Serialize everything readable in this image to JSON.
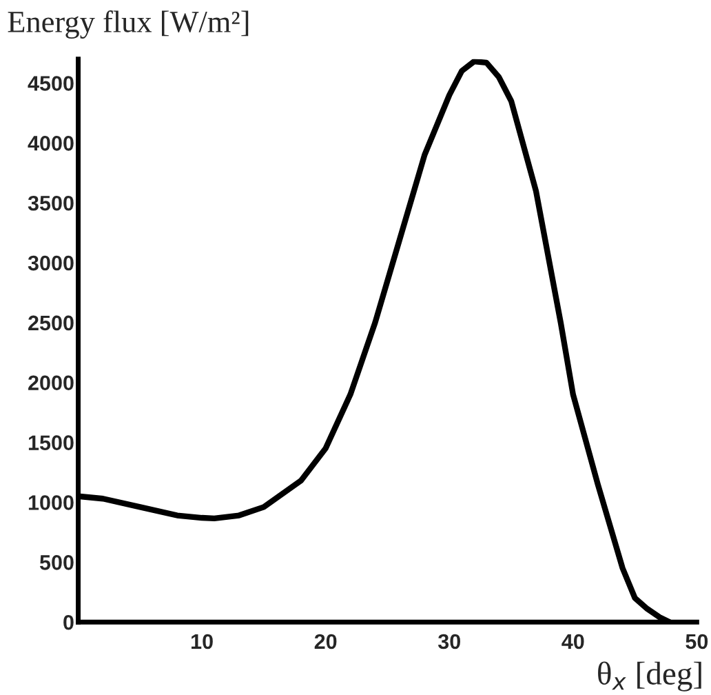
{
  "chart_data": {
    "type": "line",
    "ylabel": "Energy flux [W/m²]",
    "xlabel": "θ$_{x}$ [deg]",
    "x": [
      0,
      2,
      5,
      8,
      10,
      11,
      13,
      15,
      18,
      20,
      22,
      24,
      26,
      28,
      30,
      31,
      32,
      33,
      34,
      35,
      37,
      39,
      40,
      42,
      44,
      45,
      46,
      47,
      47.8
    ],
    "series": [
      {
        "color": "#000000",
        "values": [
          1050,
          1030,
          960,
          890,
          870,
          865,
          890,
          960,
          1180,
          1450,
          1900,
          2500,
          3200,
          3900,
          4400,
          4600,
          4680,
          4670,
          4550,
          4350,
          3600,
          2500,
          1900,
          1150,
          450,
          200,
          110,
          40,
          0
        ]
      }
    ],
    "xlim": [
      0,
      50
    ],
    "ylim": [
      0,
      4700
    ],
    "xticks": [
      10,
      20,
      30,
      40,
      50
    ],
    "yticks": [
      0,
      500,
      1000,
      1500,
      2000,
      2500,
      3000,
      3500,
      4000,
      4500
    ],
    "grid": false,
    "legend": false,
    "marker": "none",
    "line_style": "solid"
  }
}
